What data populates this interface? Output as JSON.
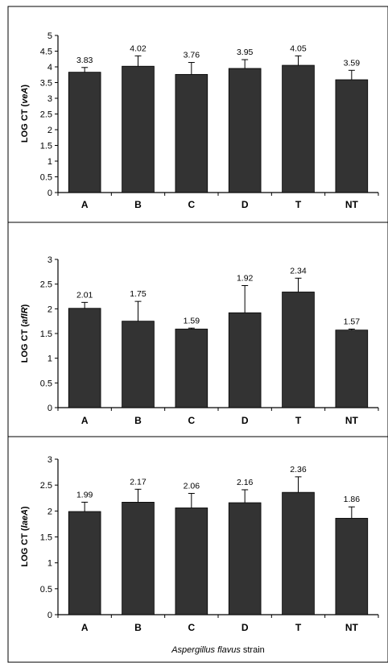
{
  "chart_data": [
    {
      "type": "bar",
      "categories": [
        "A",
        "B",
        "C",
        "D",
        "T",
        "NT"
      ],
      "values": [
        3.83,
        4.02,
        3.76,
        3.95,
        4.05,
        3.59
      ],
      "errors": [
        0.15,
        0.33,
        0.38,
        0.28,
        0.3,
        0.3
      ],
      "value_labels": [
        "3.83",
        "4.02",
        "3.76",
        "3.95",
        "4.05",
        "3.59"
      ],
      "ylabel_prefix": "LOG CT (",
      "ylabel_gene": "veA",
      "ylabel_suffix": ")",
      "ylim": [
        0,
        5
      ],
      "yticks": [
        "0",
        "0.5",
        "1",
        "1.5",
        "2",
        "2.5",
        "3",
        "3.5",
        "4",
        "4.5",
        "5"
      ],
      "xlabel": "",
      "bar_color": "#333333"
    },
    {
      "type": "bar",
      "categories": [
        "A",
        "B",
        "C",
        "D",
        "T",
        "NT"
      ],
      "values": [
        2.01,
        1.75,
        1.59,
        1.92,
        2.34,
        1.57
      ],
      "errors": [
        0.12,
        0.4,
        0.02,
        0.55,
        0.28,
        0.02
      ],
      "value_labels": [
        "2.01",
        "1.75",
        "1.59",
        "1.92",
        "2.34",
        "1.57"
      ],
      "ylabel_prefix": "LOG CT (",
      "ylabel_gene": "aflR",
      "ylabel_suffix": ")",
      "ylim": [
        0,
        3
      ],
      "yticks": [
        "0",
        "0.5",
        "1",
        "1.5",
        "2",
        "2.5",
        "3"
      ],
      "xlabel": "",
      "bar_color": "#333333"
    },
    {
      "type": "bar",
      "categories": [
        "A",
        "B",
        "C",
        "D",
        "T",
        "NT"
      ],
      "values": [
        1.99,
        2.17,
        2.06,
        2.16,
        2.36,
        1.86
      ],
      "errors": [
        0.18,
        0.25,
        0.28,
        0.25,
        0.3,
        0.22
      ],
      "value_labels": [
        "1.99",
        "2.17",
        "2.06",
        "2.16",
        "2.36",
        "1.86"
      ],
      "ylabel_prefix": "LOG CT (",
      "ylabel_gene": "laeA",
      "ylabel_suffix": ")",
      "ylim": [
        0,
        3
      ],
      "yticks": [
        "0",
        "0.5",
        "1",
        "1.5",
        "2",
        "2.5",
        "3"
      ],
      "xlabel_italic": "Aspergillus flavus",
      "xlabel_rest": " strain",
      "bar_color": "#333333"
    }
  ]
}
